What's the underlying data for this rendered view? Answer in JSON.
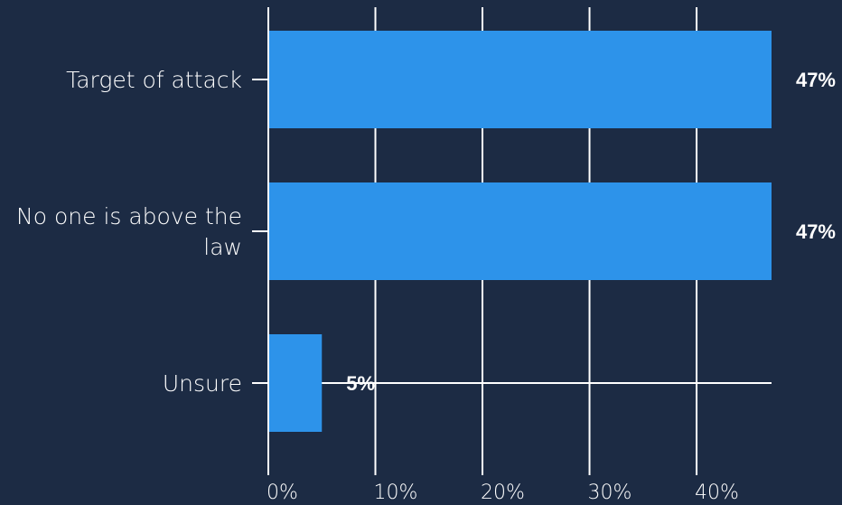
{
  "chart_data": {
    "type": "bar",
    "orientation": "horizontal",
    "categories": [
      [
        "Target of attack"
      ],
      [
        "No one is above the",
        "law"
      ],
      [
        "Unsure"
      ]
    ],
    "values": [
      47,
      47,
      5
    ],
    "value_labels": [
      "47%",
      "47%",
      "5%"
    ],
    "xlim": [
      0,
      47
    ],
    "xticks": [
      0,
      10,
      20,
      30,
      40
    ],
    "xtick_labels": [
      "0%",
      "10%",
      "20%",
      "30%",
      "40%"
    ],
    "grid": true,
    "colors": {
      "background": "#1c2b44",
      "bar": "#2d93ea",
      "grid": "#ffffff",
      "text": "#ffffff"
    }
  }
}
